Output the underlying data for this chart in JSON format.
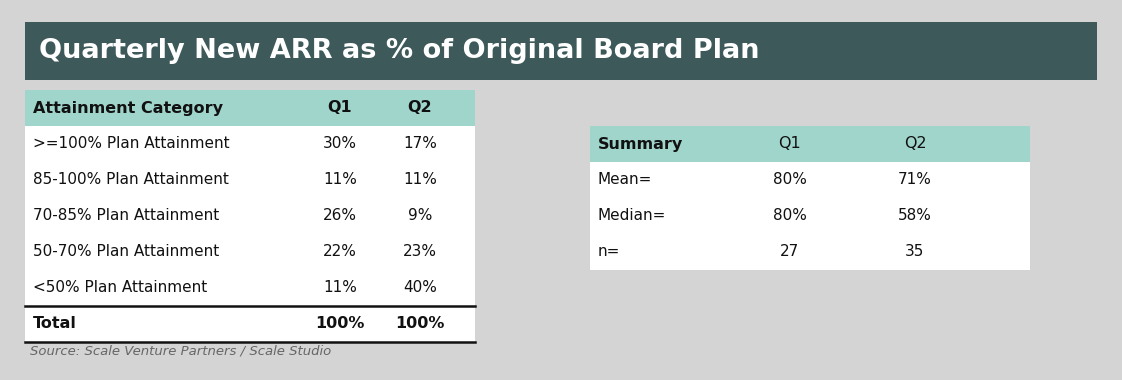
{
  "title": "Quarterly New ARR as % of Original Board Plan",
  "title_bg_color": "#3d5959",
  "title_text_color": "#ffffff",
  "bg_color": "#d4d4d4",
  "header_color": "#a0d5cc",
  "table_bg_color": "#ffffff",
  "main_headers": [
    "Attainment Category",
    "Q1",
    "Q2"
  ],
  "main_rows": [
    [
      ">=100% Plan Attainment",
      "30%",
      "17%"
    ],
    [
      "85-100% Plan Attainment",
      "11%",
      "11%"
    ],
    [
      "70-85% Plan Attainment",
      "26%",
      "9%"
    ],
    [
      "50-70% Plan Attainment",
      "22%",
      "23%"
    ],
    [
      "<50% Plan Attainment",
      "11%",
      "40%"
    ]
  ],
  "total_row": [
    "Total",
    "100%",
    "100%"
  ],
  "summary_headers": [
    "Summary",
    "Q1",
    "Q2"
  ],
  "summary_rows": [
    [
      "Mean=",
      "80%",
      "71%"
    ],
    [
      "Median=",
      "80%",
      "58%"
    ],
    [
      "n=",
      "27",
      "35"
    ]
  ],
  "source_text": "Source: Scale Venture Partners / Scale Studio"
}
